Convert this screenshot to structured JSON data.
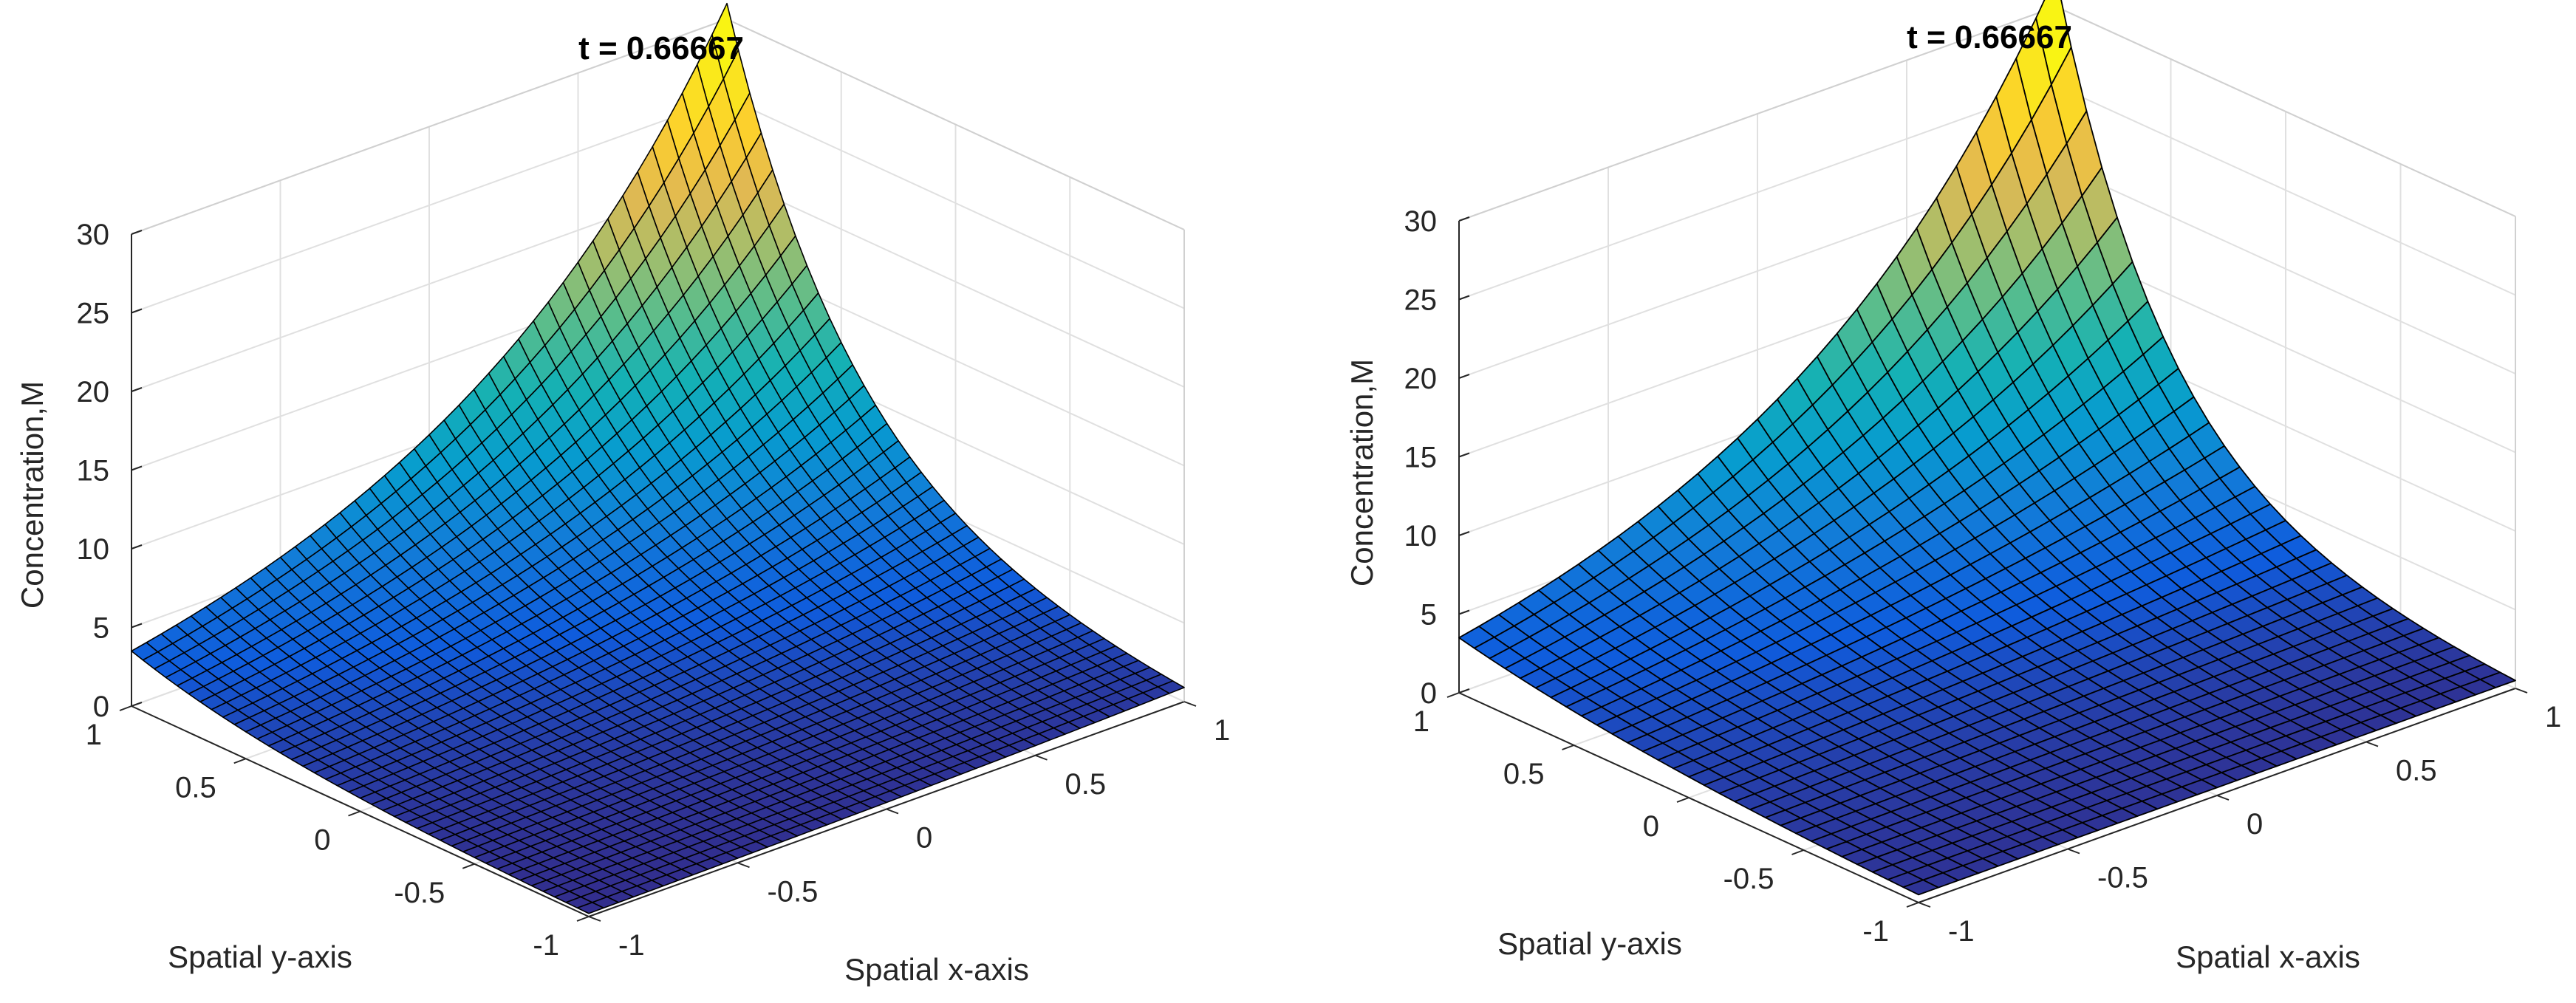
{
  "chart_data": [
    {
      "type": "surface",
      "title": "t = 0.66667",
      "xlabel": "Spatial x-axis",
      "ylabel": "Spatial y-axis",
      "zlabel": "Concentration,M",
      "xlim": [
        -1,
        1
      ],
      "ylim": [
        -1,
        1
      ],
      "zlim": [
        0,
        30
      ],
      "x_ticks": [
        "-1",
        "-0.5",
        "0",
        "0.5",
        "1"
      ],
      "y_ticks": [
        "-1",
        "-0.5",
        "0",
        "0.5",
        "1"
      ],
      "z_ticks": [
        "0",
        "5",
        "10",
        "15",
        "20",
        "25",
        "30"
      ],
      "grid": true,
      "grid_size": 40,
      "colormap": "parula",
      "edge_color": "#000000",
      "corner_values": {
        "x_-1_y_-1": 0.2,
        "x_1_y_-1": 0.9,
        "x_-1_y_1": 3.5,
        "x_1_y_1": 31
      }
    },
    {
      "type": "surface",
      "title": "t = 0.66667",
      "xlabel": "Spatial x-axis",
      "ylabel": "Spatial y-axis",
      "zlabel": "Concentration,M",
      "xlim": [
        -1,
        1
      ],
      "ylim": [
        -1,
        1
      ],
      "zlim": [
        0,
        30
      ],
      "x_ticks": [
        "-1",
        "-0.5",
        "0",
        "0.5",
        "1"
      ],
      "y_ticks": [
        "-1",
        "-0.5",
        "0",
        "0.5",
        "1"
      ],
      "z_ticks": [
        "0",
        "5",
        "10",
        "15",
        "20",
        "25",
        "30"
      ],
      "grid": true,
      "grid_size": 30,
      "colormap": "parula",
      "edge_color": "#000000",
      "corner_values": {
        "x_-1_y_-1": 0.5,
        "x_1_y_-1": 0.5,
        "x_-1_y_1": 3.5,
        "x_1_y_1": 32
      }
    }
  ]
}
